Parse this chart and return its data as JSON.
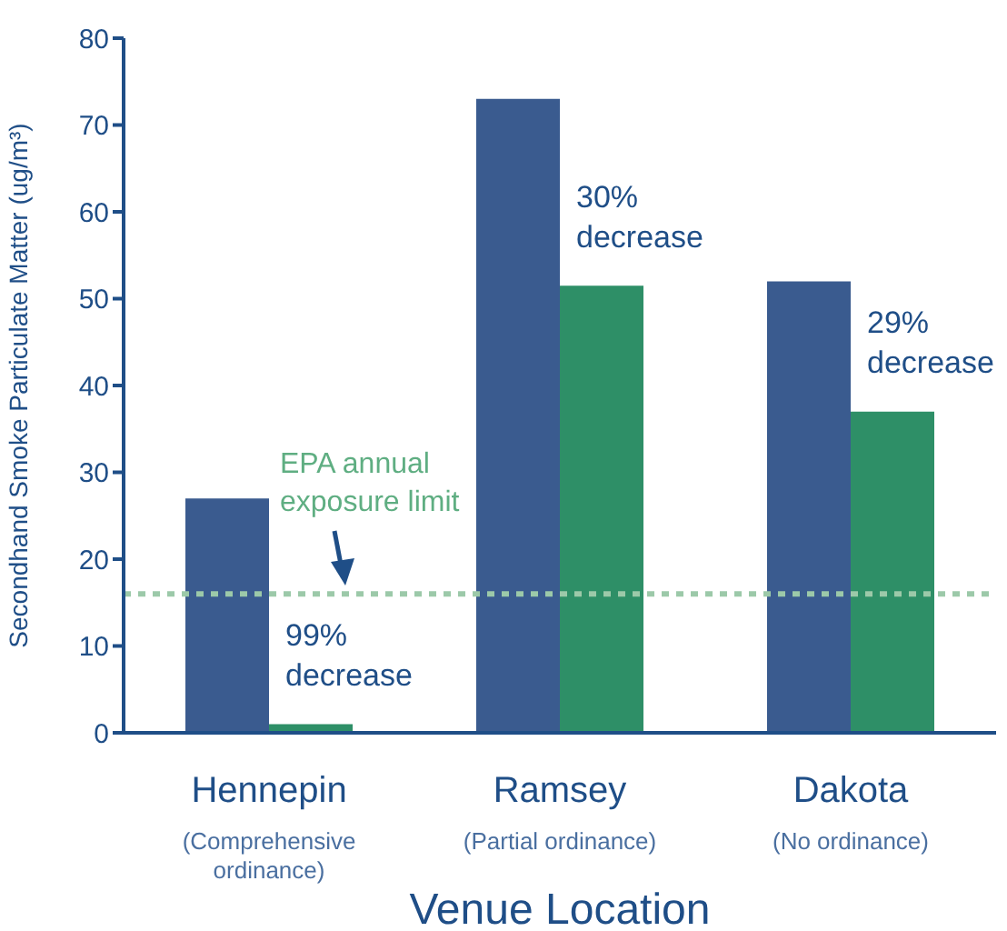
{
  "chart_data": {
    "type": "bar",
    "xlabel": "Venue Location",
    "ylabel": "Secondhand Smoke Particulate Matter (ug/m³)",
    "categories": [
      "Hennepin\n(Comprehensive ordinance)",
      "Ramsey\n(Partial ordinance)",
      "Dakota\n(No ordinance)"
    ],
    "series": [
      {
        "color": "#3a5b8f",
        "values": [
          27,
          73,
          52
        ]
      },
      {
        "color": "#2e8f67",
        "values": [
          1,
          51.5,
          37
        ]
      }
    ],
    "ylim": [
      0,
      80
    ],
    "yticks": [
      0,
      10,
      20,
      30,
      40,
      50,
      60,
      70,
      80
    ],
    "ref_lines": [
      {
        "axis": "y",
        "value": 16,
        "label": "EPA annual exposure limit",
        "color": "#9cc9a9",
        "line_style": "dashed"
      }
    ],
    "annotations": [
      "99% decrease",
      "30% decrease",
      "29% decrease"
    ]
  }
}
